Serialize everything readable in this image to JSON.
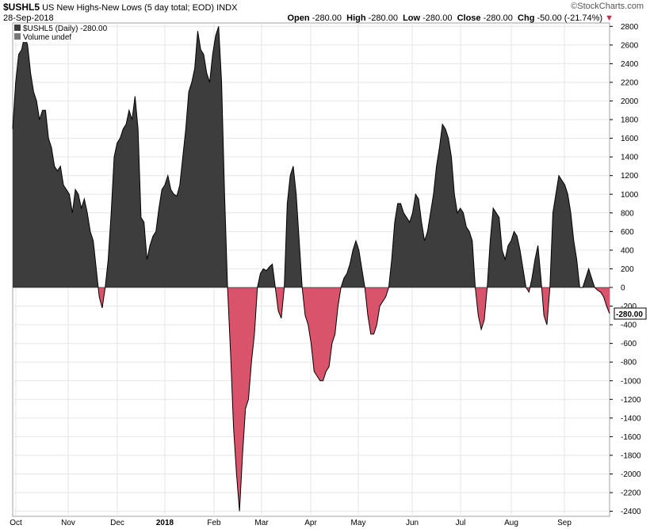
{
  "header": {
    "symbol": "$USHL5",
    "description": "US New Highs-New Lows (5 day total; EOD)",
    "exchange": "INDX",
    "date": "28-Sep-2018",
    "watermark": "©StockCharts.com",
    "open_label": "Open",
    "open_value": "-280.00",
    "high_label": "High",
    "high_value": "-280.00",
    "low_label": "Low",
    "low_value": "-280.00",
    "close_label": "Close",
    "close_value": "-280.00",
    "chg_label": "Chg",
    "chg_value": "-50.00 (-21.74%)",
    "chg_marker": "▼"
  },
  "legend": {
    "series_label": "$USHL5 (Daily) -280.00",
    "volume_label": "Volume undef"
  },
  "colors": {
    "positive_fill": "#3d3d3d",
    "negative_fill": "#d9536b",
    "line": "#000000",
    "grid": "#e6e6e6"
  },
  "chart_data": {
    "type": "area",
    "title": "US New Highs-New Lows (5 day total; EOD)",
    "ylim": [
      -2450,
      2850
    ],
    "y_ticks": [
      2800,
      2600,
      2400,
      2200,
      2000,
      1800,
      1600,
      1400,
      1200,
      1000,
      800,
      600,
      400,
      200,
      0,
      -200,
      -400,
      -600,
      -800,
      -1000,
      -1200,
      -1400,
      -1600,
      -1800,
      -2000,
      -2200,
      -2400
    ],
    "x_tick_labels": [
      {
        "label": "Oct",
        "bold": false
      },
      {
        "label": "Nov",
        "bold": false
      },
      {
        "label": "Dec",
        "bold": false
      },
      {
        "label": "2018",
        "bold": true
      },
      {
        "label": "Feb",
        "bold": false
      },
      {
        "label": "Mar",
        "bold": false
      },
      {
        "label": "Apr",
        "bold": false
      },
      {
        "label": "May",
        "bold": false
      },
      {
        "label": "Jun",
        "bold": false
      },
      {
        "label": "Jul",
        "bold": false
      },
      {
        "label": "Aug",
        "bold": false
      },
      {
        "label": "Sep",
        "bold": false
      }
    ],
    "last_value_label": "-280.00",
    "series": [
      {
        "values": [
          1700,
          2200,
          2500,
          2550,
          2700,
          2600,
          2300,
          2100,
          2000,
          1800,
          1900,
          1900,
          1600,
          1500,
          1300,
          1250,
          1300,
          1100,
          1050,
          1000,
          800,
          1050,
          1000,
          850,
          950,
          800,
          600,
          500,
          200,
          -100,
          -220,
          0,
          300,
          800,
          1400,
          1550,
          1600,
          1700,
          1750,
          1900,
          1800,
          2050,
          1700,
          750,
          700,
          300,
          450,
          550,
          600,
          850,
          1050,
          1100,
          1200,
          1050,
          1000,
          980,
          1100,
          1400,
          1700,
          2100,
          2200,
          2350,
          2750,
          2550,
          2500,
          2300,
          2200,
          2500,
          2700,
          2800,
          2200,
          1000,
          0,
          -700,
          -1500,
          -2000,
          -2400,
          -1800,
          -1300,
          -1200,
          -800,
          -500,
          0,
          150,
          200,
          180,
          220,
          250,
          0,
          -250,
          -330,
          0,
          900,
          1200,
          1300,
          1000,
          500,
          0,
          -300,
          -400,
          -600,
          -900,
          -950,
          -1000,
          -1000,
          -900,
          -850,
          -600,
          -500,
          -200,
          0,
          100,
          150,
          250,
          400,
          500,
          400,
          200,
          0,
          -300,
          -500,
          -500,
          -400,
          -200,
          -150,
          -100,
          0,
          300,
          700,
          900,
          900,
          800,
          750,
          700,
          800,
          1000,
          950,
          700,
          500,
          600,
          800,
          1000,
          1300,
          1500,
          1750,
          1700,
          1600,
          1400,
          1000,
          800,
          850,
          800,
          650,
          600,
          500,
          0,
          -300,
          -450,
          -350,
          0,
          500,
          850,
          800,
          750,
          400,
          300,
          450,
          500,
          600,
          550,
          400,
          200,
          0,
          -50,
          100,
          300,
          450,
          100,
          -300,
          -400,
          0,
          800,
          1000,
          1200,
          1150,
          1100,
          1000,
          800,
          500,
          300,
          0,
          0,
          100,
          200,
          100,
          0,
          -30,
          -50,
          -100,
          -200,
          -280
        ]
      }
    ]
  }
}
